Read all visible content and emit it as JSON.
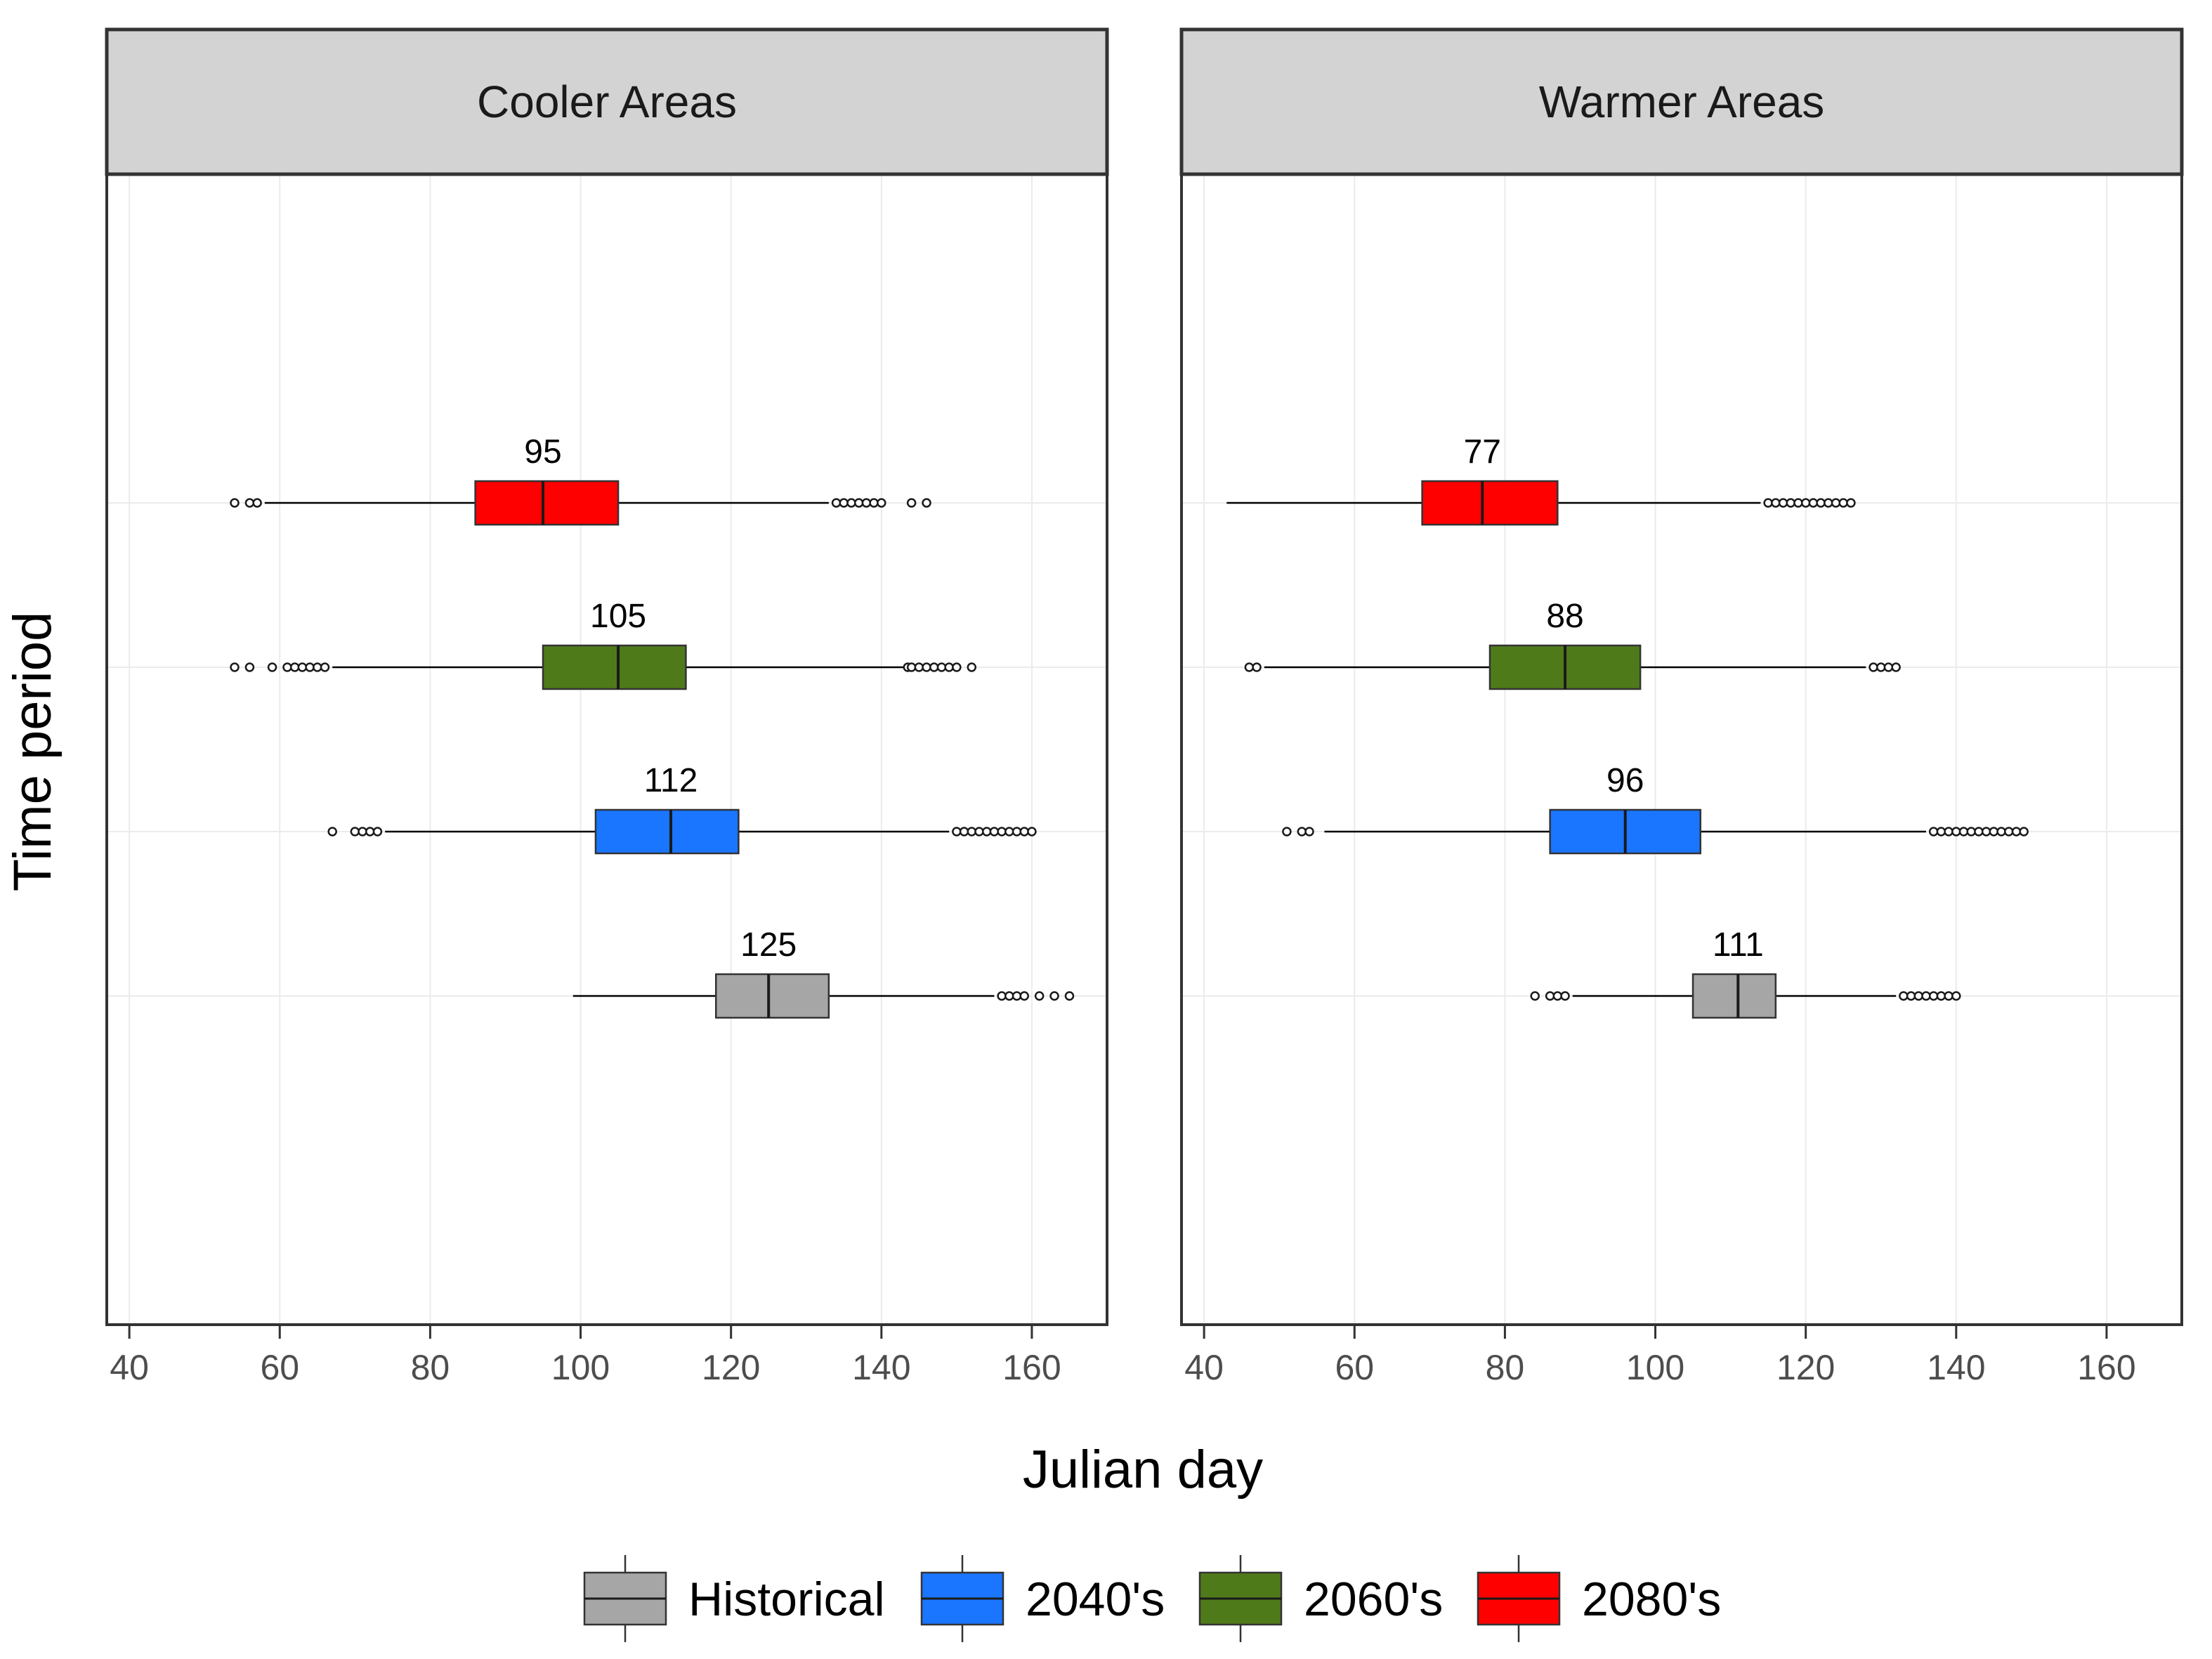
{
  "chart_data": {
    "type": "boxplot",
    "orientation": "horizontal",
    "xlabel": "Julian day",
    "ylabel": "Time period",
    "xlim": [
      37,
      170
    ],
    "xticks": [
      40,
      60,
      80,
      100,
      120,
      140,
      160
    ],
    "grid": true,
    "legend_position": "bottom",
    "colors": {
      "Historical": "#a6a6a6",
      "2040's": "#1a75ff",
      "2060's": "#4f7a1a",
      "2080's": "#ff0000",
      "strip_fill": "#d3d3d3",
      "gridline": "#ebebeb",
      "panel_border": "#333333"
    },
    "legend": {
      "entries": [
        "Historical",
        "2040's",
        "2060's",
        "2080's"
      ]
    },
    "panels": [
      {
        "title": "Cooler Areas",
        "boxes": [
          {
            "period": "Historical",
            "median_label": "125",
            "whisker_low": 99,
            "q1": 118,
            "median": 125,
            "q3": 133,
            "whisker_high": 155,
            "outliers": [
              156,
              157,
              158,
              159,
              161,
              163,
              165
            ]
          },
          {
            "period": "2040's",
            "median_label": "112",
            "whisker_low": 74,
            "q1": 102,
            "median": 112,
            "q3": 121,
            "whisker_high": 149,
            "outliers": [
              67,
              70,
              71,
              72,
              73,
              150,
              151,
              152,
              153,
              154,
              155,
              156,
              157,
              158,
              159,
              160
            ]
          },
          {
            "period": "2060's",
            "median_label": "105",
            "whisker_low": 67,
            "q1": 95,
            "median": 105,
            "q3": 114,
            "whisker_high": 143,
            "outliers": [
              54,
              56,
              59,
              61,
              62,
              63,
              64,
              65,
              66,
              143.5,
              144,
              145,
              146,
              147,
              148,
              149,
              150,
              152
            ]
          },
          {
            "period": "2080's",
            "median_label": "95",
            "whisker_low": 58,
            "q1": 86,
            "median": 95,
            "q3": 105,
            "whisker_high": 133,
            "outliers": [
              54,
              56,
              57,
              134,
              135,
              136,
              137,
              138,
              139,
              140,
              144,
              146
            ]
          }
        ]
      },
      {
        "title": "Warmer Areas",
        "boxes": [
          {
            "period": "Historical",
            "median_label": "111",
            "whisker_low": 89,
            "q1": 105,
            "median": 111,
            "q3": 116,
            "whisker_high": 132,
            "outliers": [
              84,
              86,
              87,
              88,
              133,
              134,
              135,
              136,
              137,
              138,
              139,
              140
            ]
          },
          {
            "period": "2040's",
            "median_label": "96",
            "whisker_low": 56,
            "q1": 86,
            "median": 96,
            "q3": 106,
            "whisker_high": 136,
            "outliers": [
              51,
              53,
              54,
              137,
              138,
              139,
              140,
              141,
              142,
              143,
              144,
              145,
              146,
              147,
              148,
              149
            ]
          },
          {
            "period": "2060's",
            "median_label": "88",
            "whisker_low": 48,
            "q1": 78,
            "median": 88,
            "q3": 98,
            "whisker_high": 128,
            "outliers": [
              46,
              47,
              129,
              130,
              131,
              132
            ]
          },
          {
            "period": "2080's",
            "median_label": "77",
            "whisker_low": 43,
            "q1": 69,
            "median": 77,
            "q3": 87,
            "whisker_high": 114,
            "outliers": [
              115,
              116,
              117,
              118,
              119,
              120,
              121,
              122,
              123,
              124,
              125,
              126
            ]
          }
        ]
      }
    ]
  }
}
